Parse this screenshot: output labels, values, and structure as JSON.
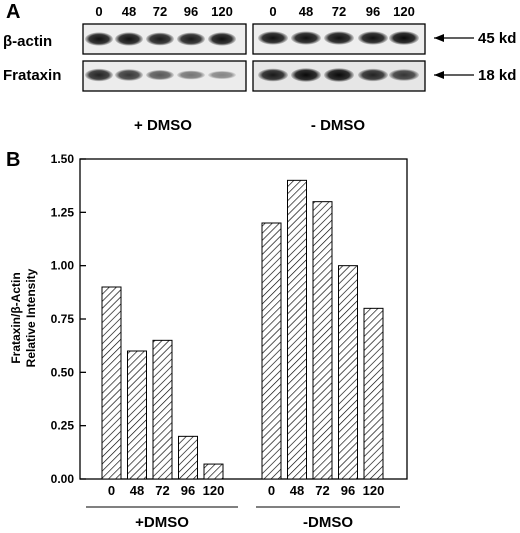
{
  "panel_a": {
    "label": "A",
    "lanes": [
      "0",
      "48",
      "72",
      "96",
      "120"
    ],
    "rows": [
      {
        "name": "β-actin",
        "marker": "45 kd",
        "plus_dmso_intensity": [
          0.9,
          0.9,
          0.85,
          0.85,
          0.9
        ],
        "minus_dmso_intensity": [
          0.9,
          0.9,
          0.9,
          0.9,
          0.95
        ]
      },
      {
        "name": "Frataxin",
        "marker": "18 kd",
        "plus_dmso_intensity": [
          0.8,
          0.7,
          0.5,
          0.35,
          0.25
        ],
        "minus_dmso_intensity": [
          0.85,
          0.95,
          0.95,
          0.8,
          0.7
        ]
      }
    ],
    "group_labels": [
      "+ DMSO",
      "- DMSO"
    ]
  },
  "chart_data": {
    "type": "bar",
    "panel_label": "B",
    "ylabel_lines": [
      "Frataxin/β-Actin",
      "Relative Intensity"
    ],
    "ylim": [
      0,
      1.5
    ],
    "yticks": [
      "0.00",
      "0.25",
      "0.50",
      "0.75",
      "1.00",
      "1.25",
      "1.50"
    ],
    "categories": [
      "0",
      "48",
      "72",
      "96",
      "120"
    ],
    "groups": [
      {
        "name": "+DMSO",
        "values": [
          0.9,
          0.6,
          0.65,
          0.2,
          0.07
        ]
      },
      {
        "name": "-DMSO",
        "values": [
          1.2,
          1.4,
          1.3,
          1.0,
          0.8
        ]
      }
    ],
    "grid": false,
    "bar_fill": "hatched"
  }
}
